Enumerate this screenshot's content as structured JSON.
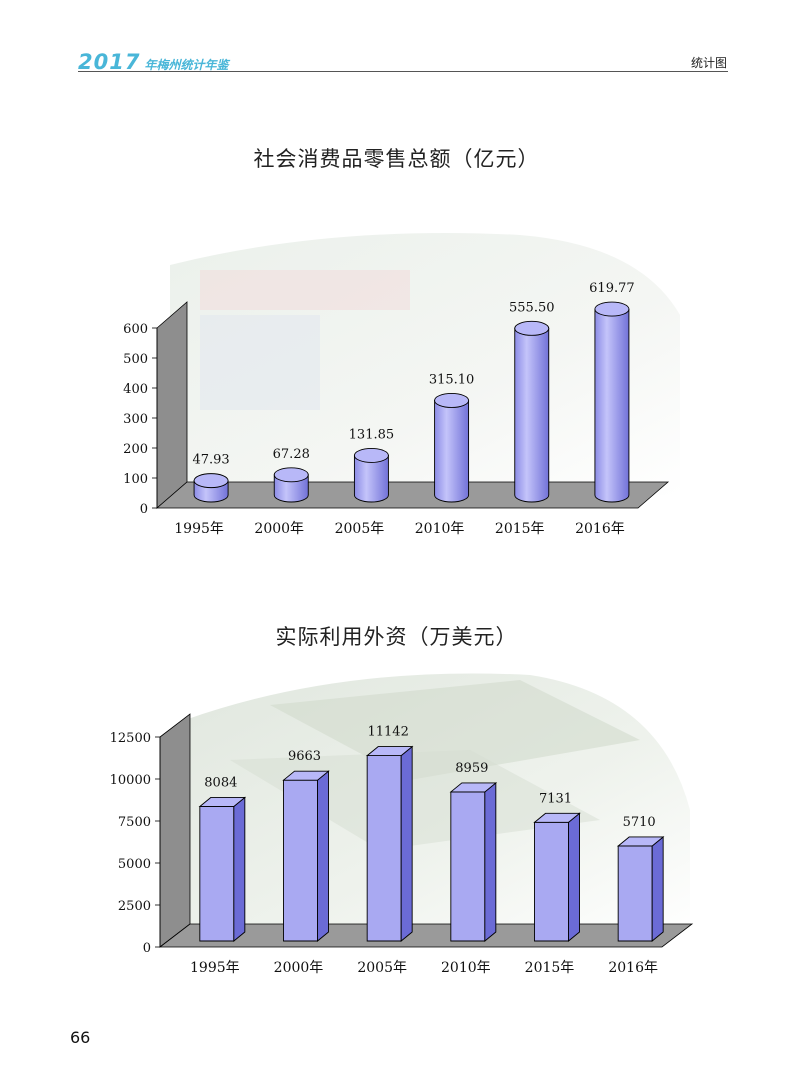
{
  "header": {
    "brand_year": "2017",
    "brand_name": "年梅州统计年鉴",
    "section": "统计图",
    "accent_color": "#49b6d8"
  },
  "page_number": "66",
  "colors": {
    "bar_face": "#a9a9f2",
    "bar_side": "#6b6bd6",
    "bar_top": "#b8b8f8",
    "bar_stroke": "#000000",
    "floor": "#9a9a9a"
  },
  "chart_data": [
    {
      "type": "bar",
      "style": "3d-cylinder",
      "title": "社会消费品零售总额（亿元）",
      "categories": [
        "1995年",
        "2000年",
        "2005年",
        "2010年",
        "2015年",
        "2016年"
      ],
      "values": [
        47.93,
        67.28,
        131.85,
        315.1,
        555.5,
        619.77
      ],
      "data_labels": [
        "47.93",
        "67.28",
        "131.85",
        "315.10",
        "555.50",
        "619.77"
      ],
      "ylim": [
        0,
        600
      ],
      "yticks": [
        "0",
        "100",
        "200",
        "300",
        "400",
        "500",
        "600"
      ],
      "background_image": "supermarket-cashier-photo"
    },
    {
      "type": "bar",
      "style": "3d-box",
      "title": "实际利用外资（万美元）",
      "categories": [
        "1995年",
        "2000年",
        "2005年",
        "2010年",
        "2015年",
        "2016年"
      ],
      "values": [
        8084,
        9663,
        11142,
        8959,
        7131,
        5710
      ],
      "data_labels": [
        "8084",
        "9663",
        "11142",
        "8959",
        "7131",
        "5710"
      ],
      "ylim": [
        0,
        12500
      ],
      "yticks": [
        "0",
        "2500",
        "5000",
        "7500",
        "10000",
        "12500"
      ],
      "background_image": "us-dollar-banknotes-photo"
    }
  ]
}
